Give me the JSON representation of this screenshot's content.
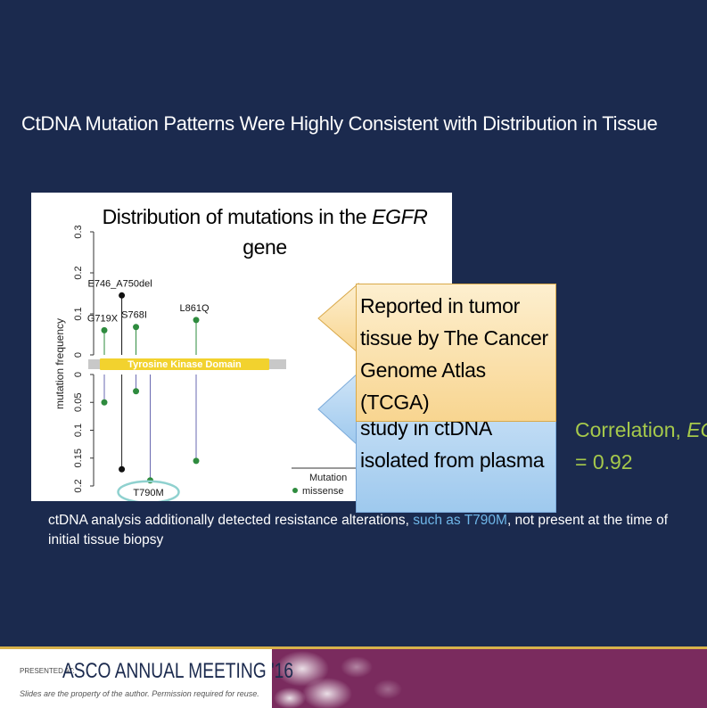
{
  "slide": {
    "title": "CtDNA Mutation Patterns Were Highly Consistent with Distribution in Tissue",
    "footnote_before": "ctDNA analysis additionally detected resistance alterations, ",
    "footnote_highlight": "such as T790M",
    "footnote_after": ", not present at the time of initial tissue biopsy",
    "colors": {
      "background": "#1b2a4e",
      "correlation_green": "#a6c94b",
      "highlight_blue": "#6fb6e8"
    }
  },
  "chart_heading": {
    "prefix": "Distribution of mutations in the ",
    "gene": "EGFR",
    "suffix": "gene"
  },
  "callouts": {
    "tumor": "Reported in tumor tissue by The Cancer Genome Atlas (TCGA)",
    "ctdna": "study in ctDNA isolated from plasma"
  },
  "correlation": {
    "prefix": "Correlation, ",
    "gene": "EG",
    "value": "= 0.92"
  },
  "footer": {
    "presented_at": "PRESENTED AT:",
    "meeting": "ASCO ANNUAL MEETING '16",
    "rights": "Slides are the property of the author. Permission required for reuse."
  },
  "chart_data": {
    "type": "lollipop",
    "ylabel": "mutation frequency",
    "top_ticks": [
      "0.3",
      "0.2",
      "0.1",
      "0"
    ],
    "bottom_ticks": [
      "0",
      "0.05",
      "0.1",
      "0.15",
      "0.2"
    ],
    "top_ylim": [
      0,
      0.3
    ],
    "bottom_ylim": [
      0,
      0.2
    ],
    "domain_label": "Tyrosine Kinase Domain",
    "legend_title": "Mutation",
    "legend_items": [
      {
        "label": "missense",
        "color": "#2e8b3e"
      }
    ],
    "highlight_label": "T790M",
    "positions": [
      719,
      746,
      768,
      790,
      861
    ],
    "tissue": [
      {
        "label": "G719X",
        "position": 719,
        "value": 0.06,
        "type": "missense"
      },
      {
        "label": "E746_A750del",
        "position": 746,
        "value": 0.145,
        "type": "in-frame deletion"
      },
      {
        "label": "S768I",
        "position": 768,
        "value": 0.068,
        "type": "missense"
      },
      {
        "label": "L861Q",
        "position": 861,
        "value": 0.085,
        "type": "missense"
      }
    ],
    "ctdna": [
      {
        "label": "G719X",
        "position": 719,
        "value": 0.05,
        "type": "missense"
      },
      {
        "label": "E746_A750del",
        "position": 746,
        "value": 0.17,
        "type": "in-frame deletion"
      },
      {
        "label": "S768I",
        "position": 768,
        "value": 0.03,
        "type": "missense"
      },
      {
        "label": "T790M",
        "position": 790,
        "value": 0.19,
        "type": "missense"
      },
      {
        "label": "L861Q",
        "position": 861,
        "value": 0.155,
        "type": "missense"
      }
    ]
  }
}
